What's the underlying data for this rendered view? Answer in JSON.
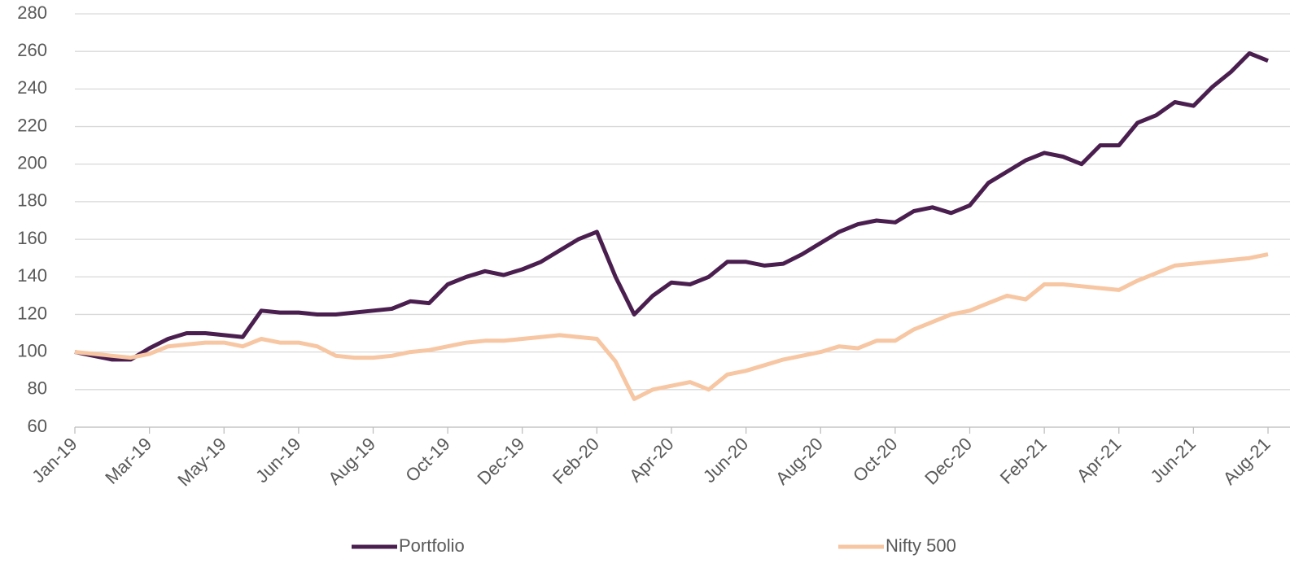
{
  "chart_data": {
    "type": "line",
    "categories": [
      "Jan-19",
      null,
      null,
      null,
      "Mar-19",
      null,
      null,
      null,
      "May-19",
      null,
      null,
      null,
      "Jun-19",
      null,
      null,
      null,
      "Aug-19",
      null,
      null,
      null,
      "Oct-19",
      null,
      null,
      null,
      "Dec-19",
      null,
      null,
      null,
      "Feb-20",
      null,
      null,
      null,
      "Apr-20",
      null,
      null,
      null,
      "Jun-20",
      null,
      null,
      null,
      "Aug-20",
      null,
      null,
      null,
      "Oct-20",
      null,
      null,
      null,
      "Dec-20",
      null,
      null,
      null,
      "Feb-21",
      null,
      null,
      null,
      "Apr-21",
      null,
      null,
      null,
      "Jun-21",
      null,
      null,
      null,
      "Aug-21"
    ],
    "series": [
      {
        "name": "Portfolio",
        "color": "#4a1f4f",
        "values": [
          100,
          98,
          96,
          96,
          102,
          107,
          110,
          110,
          109,
          108,
          122,
          121,
          121,
          120,
          120,
          121,
          122,
          123,
          127,
          126,
          136,
          140,
          143,
          141,
          144,
          148,
          154,
          160,
          164,
          140,
          120,
          130,
          137,
          136,
          140,
          148,
          148,
          146,
          147,
          152,
          158,
          164,
          168,
          170,
          169,
          175,
          177,
          174,
          178,
          190,
          196,
          202,
          206,
          204,
          200,
          210,
          210,
          222,
          226,
          233,
          231,
          241,
          249,
          259,
          255
        ]
      },
      {
        "name": "Nifty 500",
        "color": "#f7c6a3",
        "values": [
          100,
          99,
          98,
          97,
          99,
          103,
          104,
          105,
          105,
          103,
          107,
          105,
          105,
          103,
          98,
          97,
          97,
          98,
          100,
          101,
          103,
          105,
          106,
          106,
          107,
          108,
          109,
          108,
          107,
          95,
          75,
          80,
          82,
          84,
          80,
          88,
          90,
          93,
          96,
          98,
          100,
          103,
          102,
          106,
          106,
          112,
          116,
          120,
          122,
          126,
          130,
          128,
          136,
          136,
          135,
          134,
          133,
          138,
          142,
          146,
          147,
          148,
          149,
          150,
          152
        ]
      }
    ],
    "ylim": [
      60,
      280
    ],
    "yticks": [
      60,
      80,
      100,
      120,
      140,
      160,
      180,
      200,
      220,
      240,
      260,
      280
    ],
    "grid": true,
    "legend": "bottom"
  }
}
